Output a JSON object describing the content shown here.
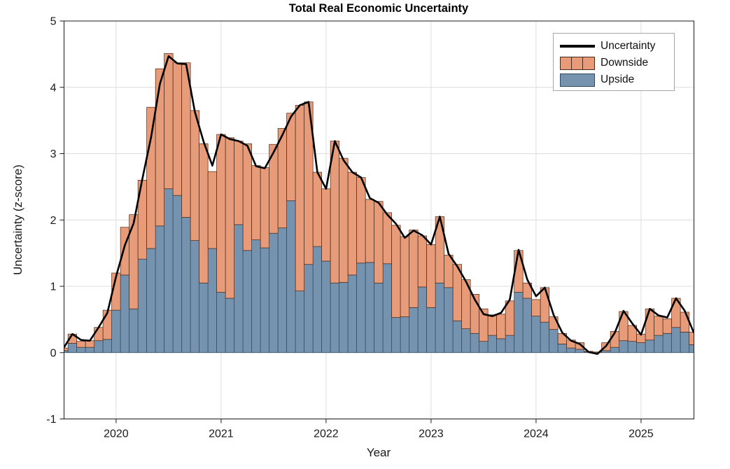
{
  "chart_data": {
    "type": "bar",
    "subtype": "stacked-monthly-bars-with-line-overlay",
    "title": "Total Real Economic Uncertainty",
    "xlabel": "Year",
    "ylabel": "Uncertainty (z-score)",
    "xlim": [
      2019.504,
      2025.504
    ],
    "ylim": [
      -1,
      5
    ],
    "xticks": [
      2020,
      2021,
      2022,
      2023,
      2024,
      2025
    ],
    "yticks": [
      -1,
      0,
      1,
      2,
      3,
      4,
      5
    ],
    "grid": true,
    "legend_position": "top-right",
    "start_month": "2019-07",
    "end_month": "2025-07",
    "x_start": 2019.5,
    "x_step_years": 0.0833333,
    "bar_width_years": 0.0833333,
    "colors": {
      "line": "#000000",
      "downside_fill": "#E89B78",
      "downside_edge": "#47291A",
      "upside_fill": "#7593AF",
      "upside_edge": "#2E4A63",
      "grid": "#DEDEDE",
      "axis": "#1a1a1a"
    },
    "series": [
      {
        "name": "Uncertainty",
        "type": "line",
        "values": [
          0.07,
          0.28,
          0.19,
          0.18,
          0.38,
          0.6,
          1.15,
          1.62,
          1.95,
          2.62,
          3.25,
          4.05,
          4.47,
          4.36,
          4.35,
          3.63,
          3.18,
          2.82,
          3.29,
          3.22,
          3.19,
          3.12,
          2.81,
          2.78,
          3.02,
          3.28,
          3.56,
          3.73,
          3.78,
          2.72,
          2.47,
          3.19,
          2.9,
          2.72,
          2.64,
          2.33,
          2.26,
          2.08,
          1.94,
          1.73,
          1.84,
          1.77,
          1.63,
          2.05,
          1.49,
          1.3,
          1.07,
          0.8,
          0.58,
          0.55,
          0.6,
          0.8,
          1.55,
          1.1,
          0.85,
          0.98,
          0.57,
          0.3,
          0.18,
          0.13,
          0.01,
          -0.02,
          0.1,
          0.3,
          0.63,
          0.44,
          0.27,
          0.66,
          0.56,
          0.53,
          0.82,
          0.63,
          0.31
        ]
      },
      {
        "name": "Downside",
        "type": "bar-stack-top",
        "values": [
          0.04,
          0.14,
          0.09,
          0.1,
          0.2,
          0.44,
          0.56,
          0.72,
          1.42,
          1.19,
          2.13,
          2.37,
          2.04,
          2.0,
          2.33,
          1.96,
          2.1,
          1.16,
          2.38,
          2.42,
          1.26,
          1.61,
          1.12,
          1.21,
          1.34,
          1.5,
          1.32,
          2.8,
          2.45,
          1.12,
          1.09,
          2.14,
          1.87,
          1.55,
          1.29,
          0.95,
          1.23,
          0.77,
          1.39,
          1.21,
          1.17,
          0.77,
          0.95,
          1.0,
          0.49,
          0.85,
          0.74,
          0.59,
          0.49,
          0.31,
          0.37,
          0.52,
          0.63,
          0.23,
          0.25,
          0.52,
          0.19,
          0.16,
          0.12,
          0.1,
          0.01,
          0.01,
          0.12,
          0.24,
          0.44,
          0.24,
          0.13,
          0.47,
          0.29,
          0.22,
          0.44,
          0.3,
          0.19
        ]
      },
      {
        "name": "Upside",
        "type": "bar-stack-base",
        "values": [
          0.03,
          0.14,
          0.08,
          0.08,
          0.18,
          0.2,
          0.64,
          1.17,
          0.66,
          1.41,
          1.57,
          1.91,
          2.47,
          2.37,
          2.04,
          1.69,
          1.05,
          1.57,
          0.91,
          0.82,
          1.93,
          1.54,
          1.7,
          1.58,
          1.8,
          1.88,
          2.29,
          0.93,
          1.33,
          1.6,
          1.38,
          1.05,
          1.06,
          1.17,
          1.35,
          1.36,
          1.05,
          1.34,
          0.53,
          0.54,
          0.68,
          0.99,
          0.68,
          1.05,
          0.98,
          0.48,
          0.36,
          0.29,
          0.17,
          0.26,
          0.21,
          0.26,
          0.91,
          0.82,
          0.55,
          0.46,
          0.35,
          0.13,
          0.07,
          0.05,
          0.01,
          0.0,
          0.03,
          0.08,
          0.18,
          0.17,
          0.15,
          0.19,
          0.26,
          0.29,
          0.38,
          0.31,
          0.12
        ]
      }
    ]
  }
}
